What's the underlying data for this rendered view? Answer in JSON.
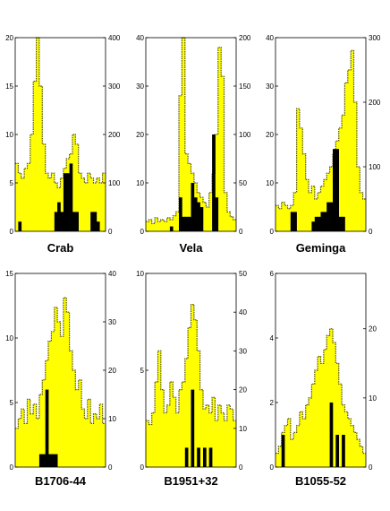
{
  "chart_data": [
    {
      "type": "bar",
      "title": "Crab",
      "xlabel": "",
      "ylabel": "",
      "ylim_left": [
        0,
        20
      ],
      "ylim_right": [
        0,
        400
      ],
      "left_ticks": [
        "0",
        "5",
        "10",
        "15",
        "20"
      ],
      "right_ticks": [
        "0",
        "100",
        "200",
        "300",
        "400"
      ],
      "series": [
        {
          "axis": "right",
          "style": "yellow-fill-dotted-outline",
          "values": [
            140,
            120,
            110,
            130,
            140,
            200,
            310,
            400,
            300,
            180,
            120,
            110,
            120,
            100,
            90,
            110,
            130,
            150,
            160,
            200,
            180,
            120,
            110,
            100,
            120,
            110,
            100,
            110,
            100,
            120
          ]
        },
        {
          "axis": "left",
          "style": "black-bars",
          "values": [
            0,
            1,
            0,
            0,
            0,
            0,
            0,
            0,
            0,
            0,
            0,
            0,
            0,
            2,
            3,
            2,
            6,
            6,
            7,
            2,
            2,
            0,
            0,
            0,
            0,
            2,
            2,
            1,
            0,
            0
          ]
        }
      ]
    },
    {
      "type": "bar",
      "title": "Vela",
      "xlabel": "",
      "ylabel": "",
      "ylim_left": [
        0,
        40
      ],
      "ylim_right": [
        0,
        200
      ],
      "left_ticks": [
        "0",
        "10",
        "20",
        "30",
        "40"
      ],
      "right_ticks": [
        "0",
        "50",
        "100",
        "150",
        "200"
      ],
      "series": [
        {
          "axis": "right",
          "style": "yellow-fill-dotted-outline",
          "values": [
            10,
            12,
            8,
            14,
            10,
            12,
            10,
            14,
            12,
            16,
            20,
            140,
            200,
            80,
            70,
            60,
            50,
            40,
            35,
            30,
            25,
            40,
            60,
            100,
            190,
            160,
            40,
            20,
            15,
            12
          ]
        },
        {
          "axis": "left",
          "style": "black-bars",
          "values": [
            0,
            0,
            0,
            0,
            0,
            0,
            0,
            0,
            1,
            0,
            0,
            7,
            3,
            3,
            3,
            10,
            7,
            6,
            5,
            0,
            0,
            0,
            20,
            7,
            0,
            0,
            0,
            0,
            0,
            0
          ]
        }
      ]
    },
    {
      "type": "bar",
      "title": "Geminga",
      "xlabel": "",
      "ylabel": "",
      "ylim_left": [
        0,
        40
      ],
      "ylim_right": [
        0,
        300
      ],
      "left_ticks": [
        "0",
        "10",
        "20",
        "30",
        "40"
      ],
      "right_ticks": [
        "0",
        "100",
        "200",
        "300"
      ],
      "series": [
        {
          "axis": "right",
          "style": "yellow-fill-dotted-outline",
          "values": [
            40,
            35,
            45,
            40,
            35,
            40,
            60,
            190,
            160,
            120,
            80,
            60,
            70,
            50,
            60,
            70,
            80,
            90,
            100,
            120,
            140,
            160,
            180,
            230,
            250,
            280,
            200,
            100,
            60,
            50
          ]
        },
        {
          "axis": "left",
          "style": "black-bars",
          "values": [
            0,
            0,
            0,
            0,
            0,
            4,
            4,
            0,
            0,
            0,
            0,
            0,
            2,
            3,
            3,
            4,
            4,
            6,
            6,
            17,
            17,
            3,
            3,
            0,
            0,
            0,
            0,
            0,
            0,
            0
          ]
        }
      ]
    },
    {
      "type": "bar",
      "title": "B1706-44",
      "xlabel": "",
      "ylabel": "",
      "ylim_left": [
        0,
        15
      ],
      "ylim_right": [
        0,
        40
      ],
      "left_ticks": [
        "0",
        "5",
        "10",
        "15"
      ],
      "right_ticks": [
        "0",
        "10",
        "20",
        "30",
        "40"
      ],
      "series": [
        {
          "axis": "right",
          "style": "yellow-fill-dotted-outline",
          "values": [
            8,
            10,
            12,
            9,
            14,
            11,
            13,
            10,
            15,
            18,
            22,
            26,
            28,
            33,
            30,
            27,
            35,
            32,
            24,
            20,
            16,
            18,
            12,
            10,
            14,
            9,
            11,
            10,
            13,
            9
          ]
        },
        {
          "axis": "left",
          "style": "black-bars",
          "values": [
            0,
            0,
            0,
            0,
            0,
            0,
            0,
            0,
            1,
            1,
            6,
            1,
            1,
            1,
            0,
            0,
            0,
            0,
            0,
            0,
            0,
            0,
            0,
            0,
            0,
            0,
            0,
            0,
            0,
            0
          ]
        }
      ]
    },
    {
      "type": "bar",
      "title": "B1951+32",
      "xlabel": "",
      "ylabel": "",
      "ylim_left": [
        0,
        10
      ],
      "ylim_right": [
        0,
        50
      ],
      "left_ticks": [
        "0",
        "5",
        "10"
      ],
      "right_ticks": [
        "0",
        "10",
        "20",
        "30",
        "40",
        "50"
      ],
      "series": [
        {
          "axis": "right",
          "style": "yellow-fill-dotted-outline",
          "values": [
            12,
            11,
            14,
            22,
            30,
            20,
            14,
            16,
            22,
            18,
            14,
            20,
            22,
            28,
            36,
            42,
            38,
            30,
            20,
            15,
            16,
            14,
            18,
            12,
            16,
            14,
            12,
            16,
            15,
            12
          ]
        },
        {
          "axis": "left",
          "style": "black-bars",
          "values": [
            0,
            0,
            0,
            0,
            0,
            0,
            0,
            0,
            0,
            0,
            0,
            0,
            0,
            1,
            0,
            4,
            0,
            1,
            0,
            1,
            0,
            1,
            0,
            0,
            0,
            0,
            0,
            0,
            0,
            0
          ]
        }
      ]
    },
    {
      "type": "bar",
      "title": "B1055-52",
      "xlabel": "",
      "ylabel": "",
      "ylim_left": [
        0,
        6
      ],
      "ylim_right": [
        0,
        28
      ],
      "left_ticks": [
        "0",
        "2",
        "4",
        "6"
      ],
      "right_ticks": [
        "0",
        "10",
        "20"
      ],
      "series": [
        {
          "axis": "right",
          "style": "yellow-fill-dotted-outline",
          "values": [
            2,
            3,
            5,
            6,
            7,
            4,
            5,
            6,
            8,
            7,
            9,
            10,
            12,
            14,
            16,
            15,
            17,
            19,
            20,
            18,
            15,
            12,
            9,
            8,
            7,
            6,
            5,
            4,
            3,
            2
          ]
        },
        {
          "axis": "left",
          "style": "black-bars",
          "values": [
            0,
            0,
            1,
            0,
            0,
            0,
            0,
            0,
            0,
            0,
            0,
            0,
            0,
            0,
            0,
            0,
            0,
            0,
            2,
            0,
            1,
            0,
            1,
            0,
            0,
            0,
            0,
            0,
            0,
            0
          ]
        }
      ]
    }
  ],
  "colors": {
    "fill": "#ffff00",
    "outline": "#555500",
    "bars": "#000000",
    "axis": "#000000"
  }
}
